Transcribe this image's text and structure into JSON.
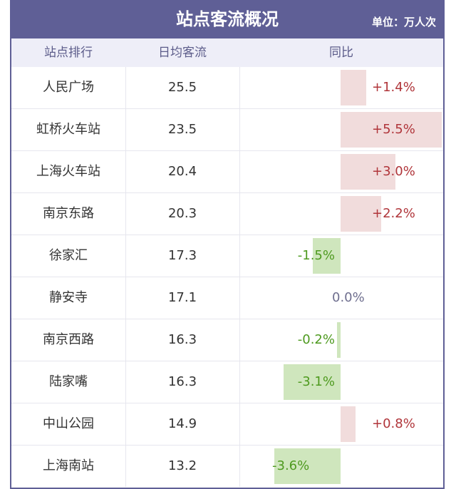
{
  "header": {
    "title": "站点客流概况",
    "unit": "单位：万人次"
  },
  "columns": {
    "rank": "站点排行",
    "avg": "日均客流",
    "yoy": "同比"
  },
  "colors": {
    "accent": "#5f5f96",
    "header_bg": "#eeeef8",
    "positive": "#b0353a",
    "negative": "#4e9a1f",
    "positive_bar": "#f1dcdc",
    "negative_bar": "#cfe6bd"
  },
  "rows": [
    {
      "name": "人民广场",
      "avg": "25.5",
      "yoy_label": "+1.4%",
      "yoy": 1.4
    },
    {
      "name": "虹桥火车站",
      "avg": "23.5",
      "yoy_label": "+5.5%",
      "yoy": 5.5
    },
    {
      "name": "上海火车站",
      "avg": "20.4",
      "yoy_label": "+3.0%",
      "yoy": 3.0
    },
    {
      "name": "南京东路",
      "avg": "20.3",
      "yoy_label": "+2.2%",
      "yoy": 2.2
    },
    {
      "name": "徐家汇",
      "avg": "17.3",
      "yoy_label": "-1.5%",
      "yoy": -1.5
    },
    {
      "name": "静安寺",
      "avg": "17.1",
      "yoy_label": "0.0%",
      "yoy": 0.0
    },
    {
      "name": "南京西路",
      "avg": "16.3",
      "yoy_label": "-0.2%",
      "yoy": -0.2
    },
    {
      "name": "陆家嘴",
      "avg": "16.3",
      "yoy_label": "-3.1%",
      "yoy": -3.1
    },
    {
      "name": "中山公园",
      "avg": "14.9",
      "yoy_label": "+0.8%",
      "yoy": 0.8
    },
    {
      "name": "上海南站",
      "avg": "13.2",
      "yoy_label": "-3.6%",
      "yoy": -3.6
    }
  ]
}
